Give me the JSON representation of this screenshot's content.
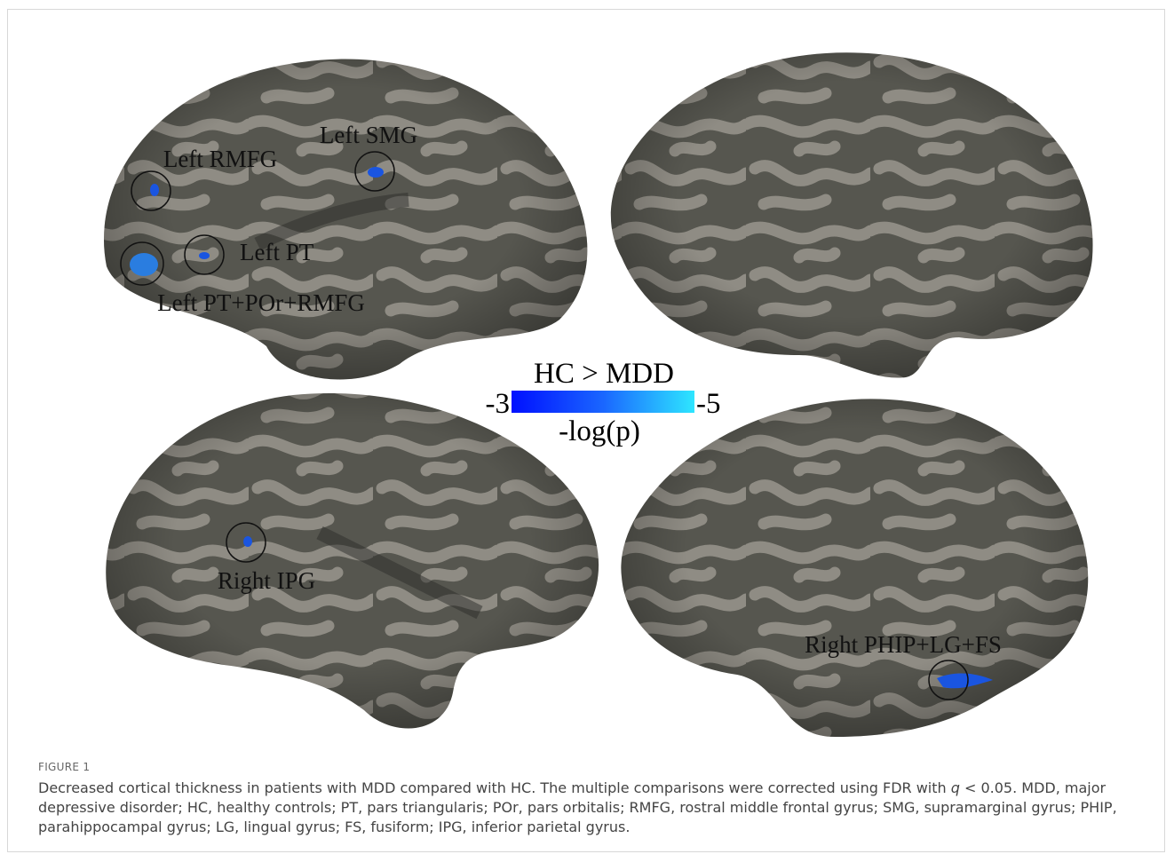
{
  "figure": {
    "labels": [
      "Left SMG",
      "Left RMFG",
      "Left PT",
      "Left PT+POr+RMFG",
      "Right IPG",
      "Right PHIP+LG+FS"
    ],
    "colorbar": {
      "title": "HC > MDD",
      "min": -3,
      "max": -5,
      "label": "-log(p)"
    },
    "caption": {
      "label": "FIGURE 1",
      "parts": [
        "Decreased cortical thickness in patients with MDD compared with HC. The multiple comparisons were corrected using FDR with ",
        "q",
        " < 0.05. MDD, major depressive disorder; HC, healthy controls; PT, pars triangularis; POr, pars orbitalis; RMFG, rostral middle frontal gyrus; SMG, supramarginal gyrus; PHIP, parahippocampal gyrus; LG, lingual gyrus; FS, fusiform; IPG, inferior parietal gyrus."
      ]
    }
  }
}
